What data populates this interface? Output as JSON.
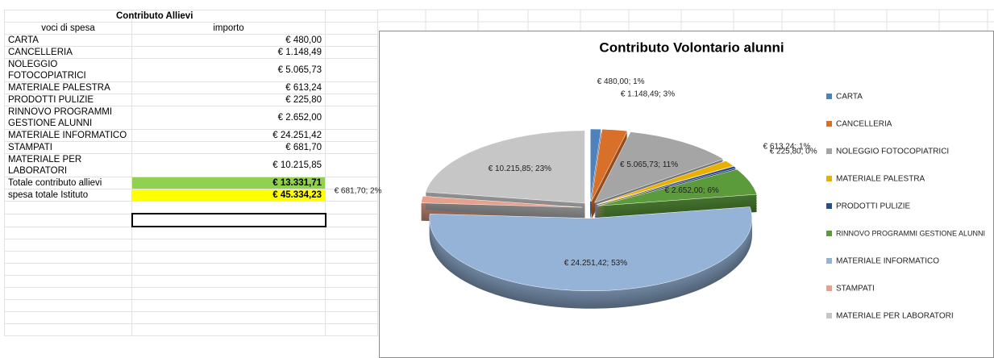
{
  "table": {
    "title": "Contributo Allievi",
    "header": [
      "voci di spesa",
      "importo"
    ],
    "rows": [
      [
        "CARTA",
        "€ 480,00"
      ],
      [
        "CANCELLERIA",
        "€ 1.148,49"
      ],
      [
        "NOLEGGIO FOTOCOPIATRICI",
        "€ 5.065,73"
      ],
      [
        "MATERIALE PALESTRA",
        "€ 613,24"
      ],
      [
        "PRODOTTI PULIZIE",
        "€ 225,80"
      ],
      [
        "RINNOVO PROGRAMMI GESTIONE ALUNNI",
        "€ 2.652,00"
      ],
      [
        "MATERIALE INFORMATICO",
        "€ 24.251,42"
      ],
      [
        "STAMPATI",
        "€ 681,70"
      ],
      [
        "MATERIALE PER LABORATORI",
        "€ 10.215,85"
      ],
      [
        "Totale contributo allievi",
        "€ 13.331,71"
      ],
      [
        "spesa totale Istituto",
        "€ 45.334,23"
      ]
    ]
  },
  "chart_data": {
    "type": "pie",
    "title": "Contributo Volontario alunni",
    "categories": [
      "CARTA",
      "CANCELLERIA",
      "NOLEGGIO FOTOCOPIATRICI",
      "MATERIALE PALESTRA",
      "PRODOTTI PULIZIE",
      "RINNOVO PROGRAMMI GESTIONE ALUNNI",
      "MATERIALE INFORMATICO",
      "STAMPATI",
      "MATERIALE PER LABORATORI"
    ],
    "values": [
      480.0,
      1148.49,
      5065.73,
      613.24,
      225.8,
      2652.0,
      24251.42,
      681.7,
      10215.85
    ],
    "value_labels": [
      "€ 480,00; 1%",
      "€ 1.148,49; 3%",
      "€ 5.065,73; 11%",
      "€ 613,24; 1%",
      "€ 225,80; 0%",
      "€ 2.652,00; 6%",
      "€ 24.251,42; 53%",
      "€ 681,70; 2%",
      "€ 10.215,85; 23%"
    ],
    "colors": [
      "#4f81bd",
      "#d8702a",
      "#a5a5a5",
      "#e8b000",
      "#2c4d8a",
      "#5b9b3c",
      "#95b3d7",
      "#e6a08c",
      "#c6c6c6"
    ],
    "legend": "right"
  }
}
